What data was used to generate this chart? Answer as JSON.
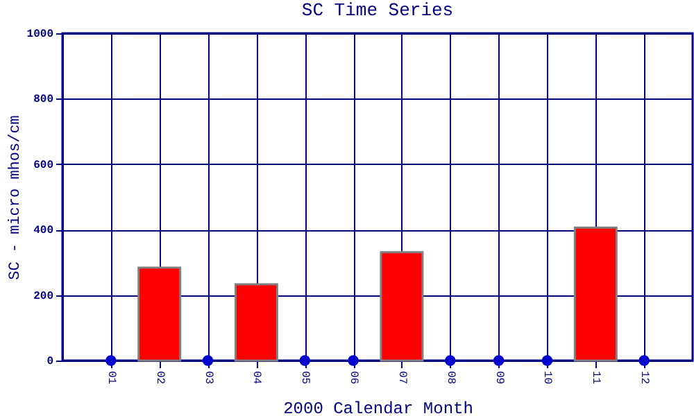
{
  "chart_data": {
    "type": "bar",
    "title": "SC Time Series",
    "xlabel": "2000 Calendar Month",
    "ylabel": "SC - micro mhos/cm",
    "categories": [
      "01",
      "02",
      "03",
      "04",
      "05",
      "06",
      "07",
      "08",
      "09",
      "10",
      "11",
      "12"
    ],
    "series": [
      {
        "color": "#ff0000",
        "values": [
          null,
          284,
          null,
          233,
          null,
          null,
          331,
          null,
          null,
          null,
          406,
          null
        ]
      },
      {
        "type": "scatter",
        "color": "#0000cc",
        "values": [
          0,
          null,
          0,
          null,
          0,
          0,
          null,
          0,
          0,
          0,
          null,
          0
        ]
      }
    ],
    "ylim": [
      0,
      1000
    ],
    "yticks": [
      0,
      200,
      400,
      600,
      800,
      1000
    ],
    "grid": true,
    "marker": "circle"
  }
}
